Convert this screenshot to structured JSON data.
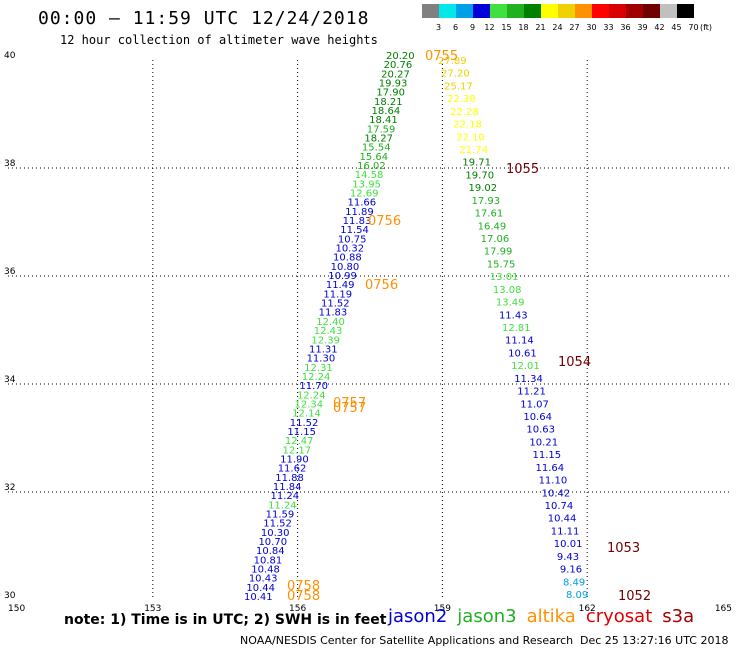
{
  "header": {
    "title": "00:00 – 11:59 UTC 12/24/2018",
    "subtitle": "12 hour collection of altimeter wave heights"
  },
  "color_scale": {
    "unit": "(ft)",
    "bins": [
      {
        "label": "3",
        "color": "#808080"
      },
      {
        "label": "6",
        "color": "#00e8e8"
      },
      {
        "label": "9",
        "color": "#00a0e8"
      },
      {
        "label": "12",
        "color": "#0000d8"
      },
      {
        "label": "15",
        "color": "#40e040"
      },
      {
        "label": "18",
        "color": "#20b020"
      },
      {
        "label": "21",
        "color": "#008000"
      },
      {
        "label": "24",
        "color": "#ffff00"
      },
      {
        "label": "27",
        "color": "#f0d000"
      },
      {
        "label": "30",
        "color": "#ff9000"
      },
      {
        "label": "33",
        "color": "#ff0000"
      },
      {
        "label": "36",
        "color": "#d80000"
      },
      {
        "label": "39",
        "color": "#a00000"
      },
      {
        "label": "42",
        "color": "#700000"
      },
      {
        "label": "45",
        "color": "#c0c0c0"
      },
      {
        "label": "70",
        "color": "#000000"
      }
    ]
  },
  "map": {
    "lon_ticks": [
      "150",
      "153",
      "156",
      "159",
      "162",
      "165"
    ],
    "lat_ticks": [
      "30",
      "32",
      "34",
      "36",
      "38",
      "40"
    ]
  },
  "readings": {
    "tracks": [
      {
        "items": [
          {
            "v": "20.20",
            "c": "#008000"
          },
          {
            "v": "20.76",
            "c": "#008000"
          },
          {
            "v": "20.27",
            "c": "#008000"
          },
          {
            "v": "19.93",
            "c": "#008000"
          },
          {
            "v": "17.90",
            "c": "#008000"
          },
          {
            "v": "18.21",
            "c": "#008000"
          },
          {
            "v": "18.64",
            "c": "#008000"
          },
          {
            "v": "18.41",
            "c": "#008000"
          },
          {
            "v": "17.59",
            "c": "#20b020"
          },
          {
            "v": "18.27",
            "c": "#008000"
          },
          {
            "v": "15.54",
            "c": "#20b020"
          },
          {
            "v": "15.64",
            "c": "#20b020"
          },
          {
            "v": "16.02",
            "c": "#20b020"
          },
          {
            "v": "14.58",
            "c": "#40e040"
          },
          {
            "v": "13.95",
            "c": "#40e040"
          },
          {
            "v": "12.69",
            "c": "#40e040"
          },
          {
            "v": "11.66",
            "c": "#0000d8"
          },
          {
            "v": "11.89",
            "c": "#0000d8"
          },
          {
            "v": "11.83",
            "c": "#0000d8"
          },
          {
            "v": "11.54",
            "c": "#0000d8"
          },
          {
            "v": "10.75",
            "c": "#0000d8"
          },
          {
            "v": "10.32",
            "c": "#0000d8"
          },
          {
            "v": "10.88",
            "c": "#0000d8"
          },
          {
            "v": "10.80",
            "c": "#0000d8"
          },
          {
            "v": "10.99",
            "c": "#0000d8"
          },
          {
            "v": "11.49",
            "c": "#0000d8"
          },
          {
            "v": "11.19",
            "c": "#0000d8"
          },
          {
            "v": "11.52",
            "c": "#0000d8"
          },
          {
            "v": "11.83",
            "c": "#0000d8"
          },
          {
            "v": "12.40",
            "c": "#40e040"
          },
          {
            "v": "12.43",
            "c": "#40e040"
          },
          {
            "v": "12.39",
            "c": "#40e040"
          },
          {
            "v": "11.31",
            "c": "#0000d8"
          },
          {
            "v": "11.30",
            "c": "#0000d8"
          },
          {
            "v": "12.31",
            "c": "#40e040"
          },
          {
            "v": "12.24",
            "c": "#40e040"
          },
          {
            "v": "11.70",
            "c": "#0000d8"
          },
          {
            "v": "12.24",
            "c": "#40e040"
          },
          {
            "v": "12.34",
            "c": "#40e040"
          },
          {
            "v": "12.14",
            "c": "#40e040"
          },
          {
            "v": "11.52",
            "c": "#0000d8"
          },
          {
            "v": "11.15",
            "c": "#0000d8"
          },
          {
            "v": "12.47",
            "c": "#40e040"
          },
          {
            "v": "12.17",
            "c": "#40e040"
          },
          {
            "v": "11.90",
            "c": "#0000d8"
          },
          {
            "v": "11.62",
            "c": "#0000d8"
          },
          {
            "v": "11.88",
            "c": "#0000d8"
          },
          {
            "v": "11.84",
            "c": "#0000d8"
          },
          {
            "v": "11.24",
            "c": "#0000d8"
          },
          {
            "v": "11.24",
            "c": "#40e040"
          },
          {
            "v": "11.59",
            "c": "#0000d8"
          },
          {
            "v": "11.52",
            "c": "#0000d8"
          },
          {
            "v": "10.30",
            "c": "#0000d8"
          },
          {
            "v": "10.70",
            "c": "#0000d8"
          },
          {
            "v": "10.84",
            "c": "#0000d8"
          },
          {
            "v": "10.81",
            "c": "#0000d8"
          },
          {
            "v": "10.48",
            "c": "#0000d8"
          },
          {
            "v": "10.43",
            "c": "#0000d8"
          },
          {
            "v": "10.44",
            "c": "#0000d8"
          },
          {
            "v": "10.41",
            "c": "#0000d8"
          }
        ]
      },
      {
        "items": [
          {
            "v": "27.89",
            "c": "#f0d000"
          },
          {
            "v": "27.20",
            "c": "#f0d000"
          },
          {
            "v": "25.17",
            "c": "#f0d000"
          },
          {
            "v": "22.38",
            "c": "#ffff00"
          },
          {
            "v": "22.28",
            "c": "#ffff00"
          },
          {
            "v": "22.18",
            "c": "#ffff00"
          },
          {
            "v": "22.10",
            "c": "#ffff00"
          },
          {
            "v": "21.74",
            "c": "#ffff00"
          },
          {
            "v": "19.71",
            "c": "#008000"
          },
          {
            "v": "19.70",
            "c": "#008000"
          },
          {
            "v": "19.02",
            "c": "#008000"
          },
          {
            "v": "17.93",
            "c": "#20b020"
          },
          {
            "v": "17.61",
            "c": "#20b020"
          },
          {
            "v": "16.49",
            "c": "#20b020"
          },
          {
            "v": "17.06",
            "c": "#20b020"
          },
          {
            "v": "17.99",
            "c": "#20b020"
          },
          {
            "v": "15.75",
            "c": "#20b020"
          },
          {
            "v": "13.01",
            "c": "#40e040"
          },
          {
            "v": "13.08",
            "c": "#40e040"
          },
          {
            "v": "13.49",
            "c": "#40e040"
          },
          {
            "v": "11.43",
            "c": "#0000d8"
          },
          {
            "v": "12.81",
            "c": "#40e040"
          },
          {
            "v": "11.14",
            "c": "#0000d8"
          },
          {
            "v": "10.61",
            "c": "#0000d8"
          },
          {
            "v": "12.01",
            "c": "#40e040"
          },
          {
            "v": "11.34",
            "c": "#0000d8"
          },
          {
            "v": "11.21",
            "c": "#0000d8"
          },
          {
            "v": "11.07",
            "c": "#0000d8"
          },
          {
            "v": "10.64",
            "c": "#0000d8"
          },
          {
            "v": "10.63",
            "c": "#0000d8"
          },
          {
            "v": "10.21",
            "c": "#0000d8"
          },
          {
            "v": "11.15",
            "c": "#0000d8"
          },
          {
            "v": "11.64",
            "c": "#0000d8"
          },
          {
            "v": "11.10",
            "c": "#0000d8"
          },
          {
            "v": "10.42",
            "c": "#0000d8"
          },
          {
            "v": "10.74",
            "c": "#0000d8"
          },
          {
            "v": "10.44",
            "c": "#0000d8"
          },
          {
            "v": "11.11",
            "c": "#0000d8"
          },
          {
            "v": "10.01",
            "c": "#0000d8"
          },
          {
            "v": "9.43",
            "c": "#0000d8"
          },
          {
            "v": "9.16",
            "c": "#0000d8"
          },
          {
            "v": "8.49",
            "c": "#00a0e8"
          },
          {
            "v": "8.09",
            "c": "#00a0e8"
          }
        ]
      }
    ],
    "pass_times": [
      {
        "t": "0755",
        "c": "#ff9000"
      },
      {
        "t": "0756",
        "c": "#ff9000"
      },
      {
        "t": "0756",
        "c": "#ff9000"
      },
      {
        "t": "0757",
        "c": "#ff9000"
      },
      {
        "t": "0757",
        "c": "#ff9000"
      },
      {
        "t": "0758",
        "c": "#ff9000"
      },
      {
        "t": "0758",
        "c": "#ff9000"
      },
      {
        "t": "1055",
        "c": "#700000"
      },
      {
        "t": "1054",
        "c": "#700000"
      },
      {
        "t": "1053",
        "c": "#700000"
      },
      {
        "t": "1052",
        "c": "#700000"
      }
    ]
  },
  "note": "note: 1) Time is in UTC; 2) SWH is in feet",
  "legend": [
    {
      "label": "jason2",
      "color": "#0000d8"
    },
    {
      "label": "jason3",
      "color": "#20b020"
    },
    {
      "label": "altika",
      "color": "#ff9000"
    },
    {
      "label": "cryosat",
      "color": "#e00000"
    },
    {
      "label": "s3a",
      "color": "#a00000"
    }
  ],
  "footer": {
    "credit": "NOAA/NESDIS Center for Satellite Applications and Research",
    "timestamp": "Dec 25 13:27:16 UTC 2018"
  }
}
